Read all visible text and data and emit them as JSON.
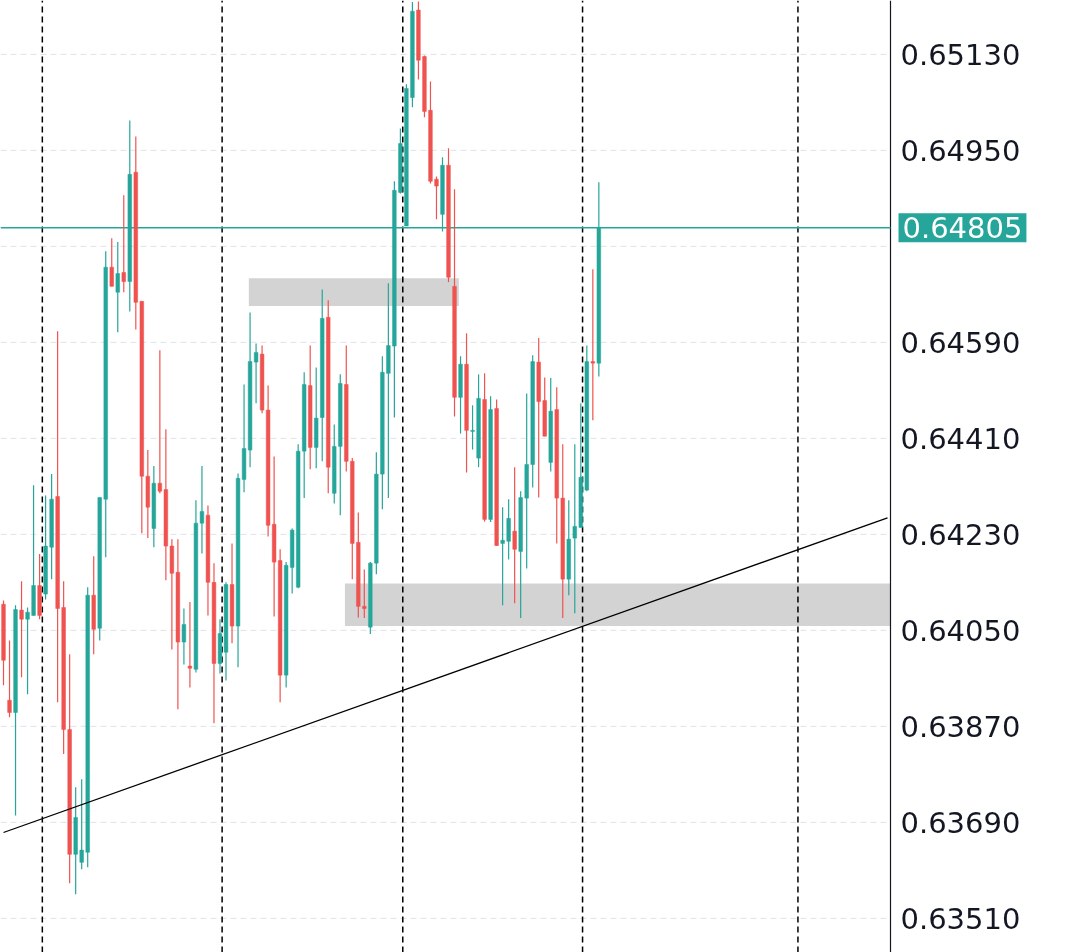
{
  "chart_data": {
    "type": "candlestick",
    "categories": [
      null,
      null,
      null,
      null,
      null,
      null,
      null,
      null,
      null,
      null,
      null,
      null,
      null,
      null,
      null,
      null,
      null,
      null,
      null,
      null,
      null,
      null,
      null,
      null,
      null,
      null,
      null,
      null,
      null,
      null,
      null,
      null,
      null,
      null,
      null,
      null,
      null,
      null,
      null,
      null,
      null,
      null,
      null,
      null,
      null,
      null,
      null,
      null,
      null,
      null,
      null,
      null,
      null,
      null,
      null,
      null,
      null,
      null,
      null,
      null,
      null,
      null,
      null,
      null,
      null,
      null,
      null,
      null,
      null,
      null,
      null,
      null,
      null,
      null,
      null,
      null,
      null,
      null,
      null,
      null,
      null,
      null,
      null,
      null,
      null,
      null,
      null,
      null,
      null,
      null,
      null,
      null,
      null,
      null,
      null,
      null,
      null,
      null,
      null,
      null,
      null,
      null,
      null,
      null,
      null,
      null,
      null,
      null,
      null,
      null,
      null,
      null,
      null,
      null,
      null,
      null,
      null,
      null,
      null,
      null,
      null,
      null,
      null,
      null,
      null,
      null,
      null,
      null,
      null,
      null,
      null,
      null,
      null,
      null,
      null,
      null,
      null,
      null,
      null,
      null,
      null,
      null,
      null,
      null,
      null,
      null,
      null,
      null
    ],
    "ohlc": [
      [
        0.64099,
        0.64106,
        0.63947,
        0.63994
      ],
      [
        0.63919,
        0.64031,
        0.63887,
        0.63896
      ],
      [
        0.63896,
        0.64097,
        0.63703,
        0.64089
      ],
      [
        0.64088,
        0.64142,
        0.63962,
        0.64071
      ],
      [
        0.64071,
        0.64093,
        0.6393,
        0.64084
      ],
      [
        0.64078,
        0.64322,
        0.64078,
        0.64134
      ],
      [
        0.64134,
        0.64193,
        0.64071,
        0.64078
      ],
      [
        0.64118,
        0.64303,
        0.64108,
        0.64208
      ],
      [
        0.64206,
        0.64343,
        0.64146,
        0.64296
      ],
      [
        0.64301,
        0.64611,
        0.63915,
        0.64091
      ],
      [
        0.64093,
        0.64142,
        0.63818,
        0.63864
      ],
      [
        0.63864,
        0.64005,
        0.63576,
        0.6363
      ],
      [
        0.6363,
        0.63756,
        0.63555,
        0.63699
      ],
      [
        0.63615,
        0.63771,
        0.63602,
        0.63638
      ],
      [
        0.63634,
        0.64131,
        0.63606,
        0.64116
      ],
      [
        0.64116,
        0.64189,
        0.64005,
        0.64052
      ],
      [
        0.64054,
        0.64299,
        0.64031,
        0.64299
      ],
      [
        0.64296,
        0.64761,
        0.64187,
        0.64731
      ],
      [
        0.64731,
        0.64785,
        0.64695,
        0.64695
      ],
      [
        0.64684,
        0.64778,
        0.64609,
        0.64719
      ],
      [
        0.64721,
        0.64866,
        0.64684,
        0.64704
      ],
      [
        0.64704,
        0.65006,
        0.64648,
        0.64905
      ],
      [
        0.64909,
        0.64976,
        0.64614,
        0.64665
      ],
      [
        0.64667,
        0.64667,
        0.64232,
        0.64339
      ],
      [
        0.64339,
        0.64388,
        0.64223,
        0.64281
      ],
      [
        0.64241,
        0.64358,
        0.64206,
        0.64326
      ],
      [
        0.64326,
        0.64575,
        0.64307,
        0.64311
      ],
      [
        0.64314,
        0.64427,
        0.64144,
        0.64208
      ],
      [
        0.64208,
        0.64221,
        0.64014,
        0.64157
      ],
      [
        0.64159,
        0.64221,
        0.63902,
        0.64028
      ],
      [
        0.64028,
        0.64091,
        0.63986,
        0.64061
      ],
      [
        0.63983,
        0.64103,
        0.63943,
        0.63979
      ],
      [
        0.63977,
        0.64294,
        0.63971,
        0.64251
      ],
      [
        0.64251,
        0.64358,
        0.64194,
        0.64273
      ],
      [
        0.64266,
        0.64284,
        0.64078,
        0.6414
      ],
      [
        0.6414,
        0.64176,
        0.63876,
        0.63988
      ],
      [
        0.63988,
        0.64071,
        0.63969,
        0.64044
      ],
      [
        0.64009,
        0.6414,
        0.63956,
        0.64136
      ],
      [
        0.64136,
        0.64213,
        0.64026,
        0.64058
      ],
      [
        0.64058,
        0.64344,
        0.63981,
        0.64335
      ],
      [
        0.64333,
        0.64511,
        0.64309,
        0.64391
      ],
      [
        0.64388,
        0.64646,
        0.64356,
        0.64554
      ],
      [
        0.64553,
        0.64588,
        0.64476,
        0.64571
      ],
      [
        0.64568,
        0.64584,
        0.64457,
        0.64463
      ],
      [
        0.64463,
        0.64509,
        0.64226,
        0.64247
      ],
      [
        0.64249,
        0.64376,
        0.64076,
        0.64178
      ],
      [
        0.64181,
        0.64202,
        0.63915,
        0.63966
      ],
      [
        0.63966,
        0.64178,
        0.63943,
        0.64172
      ],
      [
        0.64168,
        0.64241,
        0.64119,
        0.64238
      ],
      [
        0.64131,
        0.64399,
        0.64129,
        0.64386
      ],
      [
        0.64386,
        0.64534,
        0.64298,
        0.64511
      ],
      [
        0.64509,
        0.64584,
        0.64352,
        0.64393
      ],
      [
        0.64393,
        0.64543,
        0.64354,
        0.64448
      ],
      [
        0.64449,
        0.64689,
        0.64367,
        0.64635
      ],
      [
        0.64637,
        0.64669,
        0.64307,
        0.64356
      ],
      [
        0.64307,
        0.64436,
        0.64288,
        0.64395
      ],
      [
        0.64395,
        0.6453,
        0.64266,
        0.64513
      ],
      [
        0.64511,
        0.64584,
        0.64348,
        0.64367
      ],
      [
        0.64367,
        0.64373,
        0.64146,
        0.64213
      ],
      [
        0.64215,
        0.64271,
        0.64074,
        0.64095
      ],
      [
        0.64095,
        0.64164,
        0.64073,
        0.64091
      ],
      [
        0.64056,
        0.64178,
        0.64043,
        0.64176
      ],
      [
        0.64176,
        0.64384,
        0.64155,
        0.64343
      ],
      [
        0.64343,
        0.64564,
        0.64277,
        0.64534
      ],
      [
        0.64532,
        0.64701,
        0.64298,
        0.64584
      ],
      [
        0.64583,
        0.64892,
        0.64449,
        0.64875
      ],
      [
        0.64871,
        0.64991,
        0.64869,
        0.64963
      ],
      [
        0.64808,
        0.65074,
        0.64808,
        0.65066
      ],
      [
        0.65049,
        0.65228,
        0.65031,
        0.65211
      ],
      [
        0.65213,
        0.65229,
        0.65083,
        0.65119
      ],
      [
        0.65126,
        0.65128,
        0.65012,
        0.65023
      ],
      [
        0.65025,
        0.65079,
        0.64888,
        0.64892
      ],
      [
        0.64896,
        0.64901,
        0.64821,
        0.64883
      ],
      [
        0.6483,
        0.64937,
        0.64798,
        0.64922
      ],
      [
        0.64922,
        0.64954,
        0.64703,
        0.64712
      ],
      [
        0.64695,
        0.64877,
        0.64451,
        0.64487
      ],
      [
        0.64487,
        0.64564,
        0.64419,
        0.64549
      ],
      [
        0.64549,
        0.64607,
        0.64346,
        0.64425
      ],
      [
        0.64423,
        0.64472,
        0.64389,
        0.64425
      ],
      [
        0.64373,
        0.6453,
        0.64356,
        0.64485
      ],
      [
        0.64483,
        0.64532,
        0.64254,
        0.64258
      ],
      [
        0.64258,
        0.64489,
        0.64253,
        0.64464
      ],
      [
        0.64466,
        0.64483,
        0.64208,
        0.64209
      ],
      [
        0.64213,
        0.64281,
        0.64097,
        0.64219
      ],
      [
        0.64217,
        0.64296,
        0.64183,
        0.6426
      ],
      [
        0.64236,
        0.64356,
        0.64101,
        0.64202
      ],
      [
        0.64198,
        0.64311,
        0.64073,
        0.64299
      ],
      [
        0.64298,
        0.64494,
        0.64166,
        0.64361
      ],
      [
        0.64361,
        0.64566,
        0.64318,
        0.64554
      ],
      [
        0.64553,
        0.64598,
        0.64299,
        0.64479
      ],
      [
        0.64481,
        0.64524,
        0.64414,
        0.64414
      ],
      [
        0.64365,
        0.64523,
        0.64348,
        0.64461
      ],
      [
        0.64464,
        0.64506,
        0.64213,
        0.64298
      ],
      [
        0.64298,
        0.64399,
        0.64073,
        0.64146
      ],
      [
        0.64146,
        0.64294,
        0.64116,
        0.64221
      ],
      [
        0.64223,
        0.64399,
        0.64082,
        0.64245
      ],
      [
        0.64243,
        0.64476,
        0.64243,
        0.64337
      ],
      [
        0.64313,
        0.64584,
        0.64311,
        0.64554
      ],
      [
        0.64554,
        0.64727,
        0.64444,
        0.64551
      ],
      [
        0.64551,
        0.6489,
        0.64526,
        0.64805
      ],
      null,
      null,
      null,
      null,
      null,
      null,
      null,
      null,
      null,
      null,
      null,
      null,
      null,
      null,
      null,
      null,
      null,
      null,
      null,
      null,
      null,
      null,
      null,
      null,
      null,
      null,
      null,
      null,
      null,
      null,
      null,
      null,
      null,
      null,
      null,
      null,
      null,
      null,
      null,
      null,
      null,
      null,
      null,
      null,
      null,
      null,
      null,
      null
    ],
    "colors": [
      "#ef5350",
      "#ef5350",
      "#26a69a",
      "#ef5350",
      "#26a69a",
      "#26a69a",
      "#ef5350",
      "#26a69a",
      "#26a69a",
      "#ef5350",
      "#ef5350",
      "#ef5350",
      "#26a69a",
      "#26a69a",
      "#26a69a",
      "#ef5350",
      "#26a69a",
      "#26a69a",
      "#ef5350",
      "#26a69a",
      "#ef5350",
      "#26a69a",
      "#ef5350",
      "#ef5350",
      "#ef5350",
      "#26a69a",
      "#ef5350",
      "#ef5350",
      "#ef5350",
      "#ef5350",
      "#26a69a",
      "#ef5350",
      "#26a69a",
      "#26a69a",
      "#ef5350",
      "#ef5350",
      "#26a69a",
      "#26a69a",
      "#ef5350",
      "#26a69a",
      "#26a69a",
      "#26a69a",
      "#26a69a",
      "#ef5350",
      "#ef5350",
      "#ef5350",
      "#ef5350",
      "#26a69a",
      "#26a69a",
      "#26a69a",
      "#26a69a",
      "#ef5350",
      "#26a69a",
      "#26a69a",
      "#ef5350",
      "#26a69a",
      "#26a69a",
      "#ef5350",
      "#ef5350",
      "#ef5350",
      "#ef5350",
      "#26a69a",
      "#26a69a",
      "#26a69a",
      "#26a69a",
      "#26a69a",
      "#26a69a",
      "#26a69a",
      "#26a69a",
      "#ef5350",
      "#ef5350",
      "#ef5350",
      "#ef5350",
      "#26a69a",
      "#ef5350",
      "#ef5350",
      "#26a69a",
      "#ef5350",
      "#26a69a",
      "#26a69a",
      "#ef5350",
      "#26a69a",
      "#ef5350",
      "#26a69a",
      "#26a69a",
      "#ef5350",
      "#26a69a",
      "#26a69a",
      "#26a69a",
      "#ef5350",
      "#ef5350",
      "#26a69a",
      "#ef5350",
      "#ef5350",
      "#26a69a",
      "#26a69a",
      "#26a69a",
      "#26a69a",
      "#ef5350",
      "#26a69a",
      null,
      null,
      null,
      null,
      null,
      null,
      null,
      null,
      null,
      null,
      null,
      null,
      null,
      null,
      null,
      null,
      null,
      null,
      null,
      null,
      null,
      null,
      null,
      null,
      null,
      null,
      null,
      null,
      null,
      null,
      null,
      null,
      null,
      null,
      null,
      null,
      null,
      null,
      null,
      null,
      null,
      null,
      null,
      null,
      null,
      null,
      null,
      null
    ],
    "series": [
      {
        "type": "line",
        "values": [
          0.63671,
          null,
          null,
          null,
          null,
          null,
          null,
          null,
          null,
          null,
          null,
          null,
          null,
          null,
          null,
          null,
          null,
          null,
          null,
          null,
          null,
          null,
          null,
          null,
          null,
          null,
          null,
          null,
          null,
          null,
          null,
          null,
          null,
          null,
          null,
          null,
          null,
          null,
          null,
          null,
          null,
          null,
          null,
          null,
          null,
          null,
          null,
          null,
          null,
          null,
          null,
          null,
          null,
          null,
          null,
          null,
          null,
          null,
          null,
          null,
          null,
          null,
          null,
          null,
          null,
          null,
          null,
          null,
          null,
          null,
          null,
          null,
          null,
          null,
          null,
          null,
          null,
          null,
          null,
          null,
          null,
          null,
          null,
          null,
          null,
          null,
          null,
          null,
          null,
          null,
          null,
          null,
          null,
          null,
          null,
          null,
          null,
          null,
          null,
          null,
          null,
          null,
          null,
          null,
          null,
          null,
          null,
          null,
          null,
          null,
          null,
          null,
          null,
          null,
          null,
          null,
          null,
          null,
          null,
          null,
          null,
          null,
          null,
          null,
          null,
          null,
          null,
          null,
          null,
          null,
          null,
          null,
          null,
          null,
          null,
          null,
          null,
          null,
          null,
          null,
          null,
          null,
          null,
          null,
          null,
          null,
          null,
          0.64261
        ],
        "color": "#000000"
      }
    ],
    "ylim": [
      0.63446,
      0.65231
    ],
    "yticks": [
      {
        "value": 0.6351,
        "label": "0.63510"
      },
      {
        "value": 0.6369,
        "label": "0.63690"
      },
      {
        "value": 0.6387,
        "label": "0.63870"
      },
      {
        "value": 0.6405,
        "label": "0.64050"
      },
      {
        "value": 0.6423,
        "label": "0.64230"
      },
      {
        "value": 0.6441,
        "label": "0.64410"
      },
      {
        "value": 0.6459,
        "label": "0.64590"
      },
      {
        "value": 0.6477,
        "label": null
      },
      {
        "value": 0.6495,
        "label": "0.64950"
      },
      {
        "value": 0.6513,
        "label": "0.65130"
      }
    ],
    "ref_lines": [
      {
        "axis": "y",
        "value": 0.64805,
        "label": "0.64805",
        "color": "#26a69a"
      }
    ],
    "bands": [
      {
        "axis": "y",
        "from": 0.64658,
        "to": 0.6471,
        "color": "#d3d3d3"
      },
      {
        "axis": "y",
        "from": 0.64058,
        "to": 0.64138,
        "color": "#d3d3d3"
      }
    ],
    "grid": "y",
    "tick_labels": "y"
  }
}
